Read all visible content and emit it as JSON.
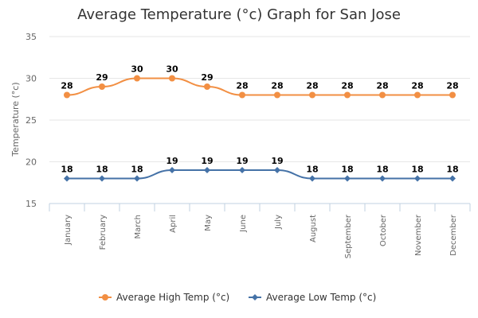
{
  "chart_data": {
    "type": "line",
    "title": "Average Temperature (°c) Graph for San Jose",
    "xlabel": "",
    "ylabel": "Temperature (°c)",
    "ylim": [
      15,
      35
    ],
    "yticks": [
      15,
      20,
      25,
      30,
      35
    ],
    "grid": true,
    "legend": "bottom",
    "categories": [
      "January",
      "February",
      "March",
      "April",
      "May",
      "June",
      "July",
      "August",
      "September",
      "October",
      "November",
      "December"
    ],
    "series": [
      {
        "name": "Average High Temp (°c)",
        "color": "#f28f43",
        "marker": "circle",
        "values": [
          28,
          29,
          30,
          30,
          29,
          28,
          28,
          28,
          28,
          28,
          28,
          28
        ]
      },
      {
        "name": "Average Low Temp (°c)",
        "color": "#4572a7",
        "marker": "diamond",
        "values": [
          18,
          18,
          18,
          19,
          19,
          19,
          19,
          18,
          18,
          18,
          18,
          18
        ]
      }
    ]
  }
}
